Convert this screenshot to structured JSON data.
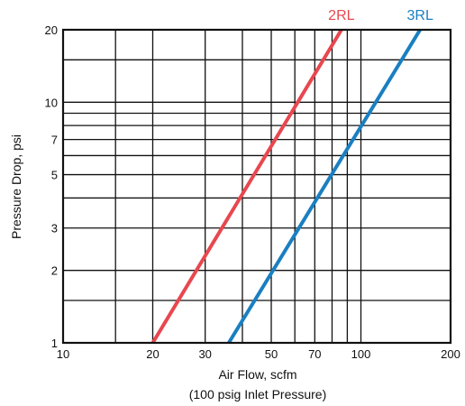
{
  "chart_data": {
    "type": "line",
    "title": "",
    "xlabel": "Air Flow, scfm",
    "xlabel_note": "(100 psig Inlet Pressure)",
    "ylabel": "Pressure Drop, psi",
    "x_scale": "log",
    "y_scale": "log",
    "xlim": [
      10,
      200
    ],
    "ylim": [
      1,
      20
    ],
    "grid": true,
    "x_ticks": [
      10,
      20,
      30,
      50,
      70,
      100,
      200
    ],
    "y_ticks": [
      1,
      2,
      3,
      5,
      7,
      10,
      20
    ],
    "x_grid": [
      10,
      15,
      20,
      30,
      40,
      50,
      60,
      70,
      80,
      90,
      100,
      200
    ],
    "y_grid": [
      1,
      1.5,
      2,
      3,
      4,
      5,
      6,
      7,
      8,
      9,
      10,
      15,
      20
    ],
    "series": [
      {
        "name": "2RL",
        "color": "#e8474f",
        "x": [
          20,
          86
        ],
        "y": [
          1,
          20
        ]
      },
      {
        "name": "3RL",
        "color": "#1a7fc1",
        "x": [
          36,
          158
        ],
        "y": [
          1,
          20
        ]
      }
    ]
  }
}
